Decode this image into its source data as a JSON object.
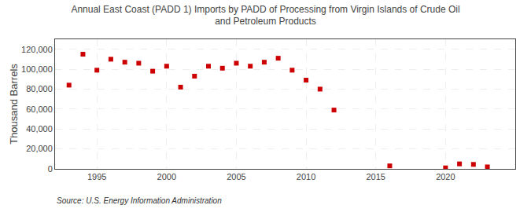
{
  "chart_data": {
    "type": "scatter",
    "title": "Annual East Coast (PADD 1) Imports by PADD of Processing from Virgin Islands of Crude Oil\nand Petroleum Products",
    "ylabel": "Thousand Barrels",
    "annotations": [
      "Source: U.S. Energy Information Administration"
    ],
    "x": [
      1993,
      1994,
      1995,
      1996,
      1997,
      1998,
      1999,
      2000,
      2001,
      2002,
      2003,
      2004,
      2005,
      2006,
      2007,
      2008,
      2009,
      2010,
      2011,
      2012,
      2016,
      2020,
      2021,
      2022,
      2023
    ],
    "values": [
      84000,
      115000,
      99000,
      110000,
      107000,
      106000,
      98000,
      103000,
      82000,
      93000,
      103000,
      101000,
      106000,
      103000,
      107000,
      111000,
      99000,
      89000,
      80000,
      59000,
      3000,
      1000,
      5000,
      4500,
      2000
    ],
    "color": "#cc0000",
    "marker": "square",
    "xlim": [
      1992,
      2025
    ],
    "xticks": [
      1995,
      2000,
      2005,
      2010,
      2015,
      2020
    ],
    "ylim": [
      0,
      130000
    ],
    "yticks": [
      0,
      {
        "value": 20000,
        "label": "20,000"
      },
      {
        "value": 40000,
        "label": "40,000"
      },
      {
        "value": 60000,
        "label": "60,000"
      },
      {
        "value": 80000,
        "label": "80,000"
      },
      {
        "value": 100000,
        "label": "100,000"
      },
      {
        "value": 120000,
        "label": "120,000"
      }
    ],
    "grid": true
  }
}
